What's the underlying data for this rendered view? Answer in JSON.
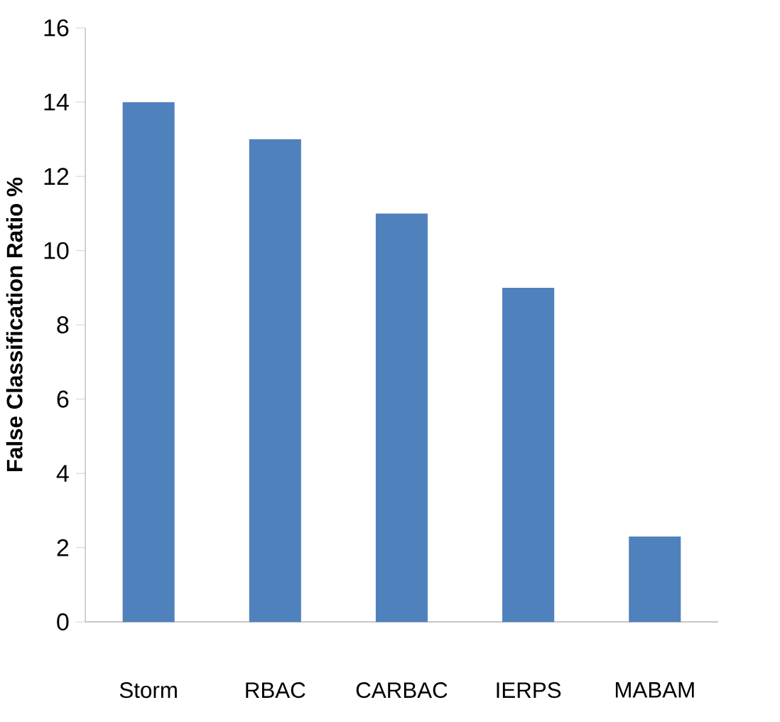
{
  "chart_data": {
    "type": "bar",
    "ylabel": "False Classification  Ratio %",
    "categories": [
      "Storm",
      "RBAC",
      "CARBAC",
      "IERPS",
      "MABAM"
    ],
    "values": [
      14,
      13,
      11,
      9,
      2.3
    ],
    "color": "#4f81bd",
    "ylim": [
      0,
      16
    ],
    "yticks": [
      0,
      2,
      4,
      6,
      8,
      10,
      12,
      14,
      16
    ]
  }
}
